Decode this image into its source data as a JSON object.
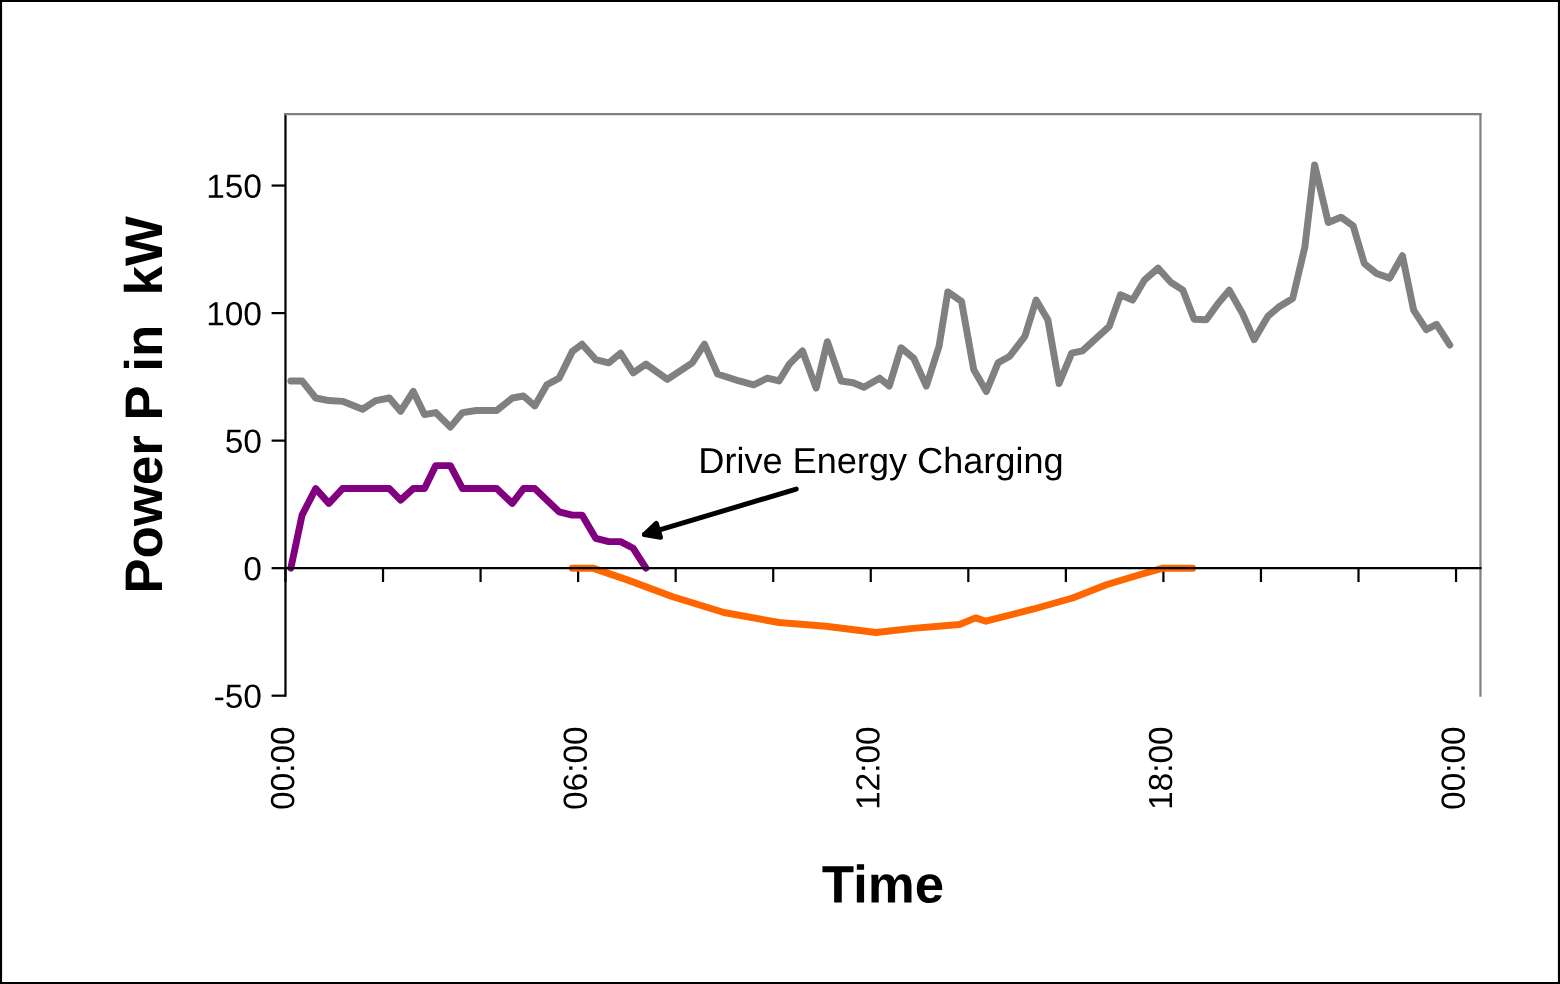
{
  "chart_data": {
    "type": "line",
    "xlabel": "Time",
    "ylabel": "Power P in  kW",
    "xlim": [
      0,
      24.5
    ],
    "ylim": [
      -50,
      178
    ],
    "xticks": [
      {
        "value": 0,
        "label": "00:00"
      },
      {
        "value": 2,
        "label": null
      },
      {
        "value": 4,
        "label": null
      },
      {
        "value": 6,
        "label": "06:00"
      },
      {
        "value": 8,
        "label": null
      },
      {
        "value": 10,
        "label": null
      },
      {
        "value": 12,
        "label": "12:00"
      },
      {
        "value": 14,
        "label": null
      },
      {
        "value": 16,
        "label": null
      },
      {
        "value": 18,
        "label": "18:00"
      },
      {
        "value": 20,
        "label": null
      },
      {
        "value": 22,
        "label": null
      },
      {
        "value": 24,
        "label": "00:00"
      }
    ],
    "yticks": [
      -50,
      0,
      50,
      100,
      150
    ],
    "marker": "none",
    "line_style": "solid",
    "annotations": [
      {
        "text": "Drive Energy Charging",
        "x": 6.87,
        "y": 10.4
      }
    ],
    "series": [
      {
        "color": "#808080",
        "x": [
          0.11,
          0.34,
          0.62,
          0.89,
          1.17,
          1.58,
          1.85,
          2.13,
          2.36,
          2.62,
          2.85,
          3.08,
          3.38,
          3.63,
          3.91,
          4.33,
          4.65,
          4.88,
          5.11,
          5.36,
          5.61,
          5.88,
          6.08,
          6.36,
          6.63,
          6.87,
          7.13,
          7.39,
          7.83,
          8.34,
          8.59,
          8.86,
          9.3,
          9.6,
          9.88,
          10.12,
          10.33,
          10.6,
          10.88,
          11.11,
          11.39,
          11.64,
          11.86,
          12.18,
          12.38,
          12.62,
          12.88,
          13.14,
          13.4,
          13.58,
          13.86,
          14.11,
          14.37,
          14.61,
          14.85,
          15.16,
          15.39,
          15.63,
          15.86,
          16.12,
          16.34,
          16.62,
          16.89,
          17.12,
          17.37,
          17.61,
          17.89,
          18.15,
          18.4,
          18.63,
          18.88,
          19.12,
          19.35,
          19.62,
          19.86,
          20.14,
          20.38,
          20.65,
          20.9,
          21.1,
          21.38,
          21.64,
          21.89,
          22.12,
          22.37,
          22.64,
          22.9,
          23.13,
          23.39,
          23.6,
          23.87
        ],
        "values": [
          73.4,
          73.4,
          66.7,
          65.7,
          65.4,
          62.3,
          65.7,
          66.7,
          61.5,
          69.3,
          60.2,
          61.0,
          55.3,
          61.0,
          61.8,
          61.8,
          66.7,
          67.5,
          63.6,
          71.9,
          74.5,
          84.9,
          87.8,
          81.8,
          80.5,
          84.3,
          76.6,
          80.0,
          74.0,
          80.5,
          87.8,
          76.1,
          73.4,
          71.9,
          74.5,
          73.4,
          80.0,
          85.2,
          70.6,
          88.8,
          73.4,
          72.7,
          70.9,
          74.5,
          71.4,
          86.4,
          82.3,
          71.4,
          87.0,
          108.3,
          104.6,
          77.9,
          69.3,
          80.5,
          83.1,
          90.9,
          105.1,
          97.4,
          72.4,
          84.3,
          85.2,
          90.1,
          94.8,
          107.2,
          105.1,
          112.9,
          117.6,
          112.1,
          109.0,
          97.6,
          97.4,
          103.8,
          109.0,
          99.9,
          89.6,
          98.7,
          102.6,
          105.7,
          125.9,
          158.1,
          135.5,
          137.6,
          134.2,
          119.4,
          115.5,
          113.7,
          122.5,
          101.2,
          93.5,
          95.6,
          87.5
        ]
      },
      {
        "color": "#800080",
        "x": [
          0.11,
          0.34,
          0.62,
          0.89,
          1.17,
          2.13,
          2.36,
          2.62,
          2.85,
          3.08,
          3.38,
          3.63,
          4.33,
          4.65,
          4.88,
          5.11,
          5.61,
          5.88,
          6.08,
          6.36,
          6.63,
          6.87,
          7.13,
          7.39
        ],
        "values": [
          0,
          20.8,
          31.2,
          25.4,
          31.2,
          31.2,
          26.7,
          31.2,
          31.2,
          40.2,
          40.2,
          31.2,
          31.2,
          25.4,
          31.2,
          31.2,
          22.1,
          20.8,
          20.8,
          11.7,
          10.4,
          10.4,
          7.8,
          0
        ]
      },
      {
        "color": "#ff6600",
        "x": [
          5.88,
          6.3,
          6.98,
          7.94,
          8.99,
          10.12,
          11.08,
          12.11,
          12.86,
          13.82,
          14.15,
          14.36,
          15.32,
          16.14,
          16.83,
          17.51,
          17.99,
          18.6
        ],
        "values": [
          0,
          0,
          -4.4,
          -11.2,
          -17.4,
          -21.3,
          -22.8,
          -25.2,
          -23.6,
          -22.1,
          -19.5,
          -20.8,
          -16.1,
          -11.7,
          -6.5,
          -2.6,
          0,
          0
        ]
      }
    ]
  }
}
